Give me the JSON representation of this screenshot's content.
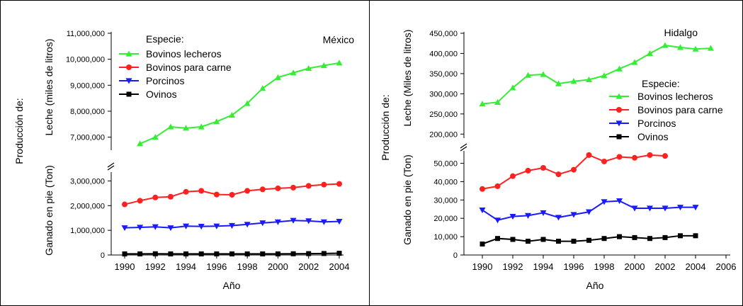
{
  "chart_data": [
    {
      "type": "line",
      "title": "México",
      "ylabel_outer": "Producción de:",
      "xlabel": "Año",
      "legend": {
        "title": "Especie:",
        "placement": "top-left"
      },
      "x": [
        1990,
        1991,
        1992,
        1993,
        1994,
        1995,
        1996,
        1997,
        1998,
        1999,
        2000,
        2001,
        2002,
        2003,
        2004
      ],
      "x_ticks": [
        "1990",
        "1992",
        "1994",
        "1996",
        "1998",
        "2000",
        "2002",
        "2004"
      ],
      "panels": [
        {
          "ylabel": "Leche (miles de litros)",
          "ylim": [
            6500000,
            11000000
          ],
          "y_ticks": [
            "7,000,000",
            "8,000,000",
            "9,000,000",
            "10,000,000",
            "11,000,000"
          ],
          "y_tick_values": [
            7000000,
            8000000,
            9000000,
            10000000,
            11000000
          ],
          "series": [
            {
              "name": "Bovinos lecheros",
              "color": "#33ee33",
              "marker": "triangle-up",
              "values": [
                null,
                6750000,
                7000000,
                7400000,
                7350000,
                7400000,
                7600000,
                7850000,
                8300000,
                8880000,
                9300000,
                9480000,
                9650000,
                9760000,
                9860000
              ]
            }
          ]
        },
        {
          "ylabel": "Ganado en pie (Ton)",
          "ylim": [
            0,
            3300000
          ],
          "y_ticks": [
            "0",
            "1,000,000",
            "2,000,000",
            "3,000,000"
          ],
          "y_tick_values": [
            0,
            1000000,
            2000000,
            3000000
          ],
          "series": [
            {
              "name": "Bovinos para carne",
              "color": "#ff2020",
              "marker": "circle",
              "values": [
                2050000,
                2200000,
                2330000,
                2360000,
                2560000,
                2600000,
                2450000,
                2440000,
                2600000,
                2660000,
                2700000,
                2730000,
                2800000,
                2850000,
                2880000
              ]
            },
            {
              "name": "Porcinos",
              "color": "#1a1aff",
              "marker": "triangle-down",
              "values": [
                1100000,
                1120000,
                1140000,
                1100000,
                1170000,
                1160000,
                1170000,
                1190000,
                1240000,
                1300000,
                1340000,
                1400000,
                1380000,
                1340000,
                1360000
              ]
            },
            {
              "name": "Ovinos",
              "color": "#000000",
              "marker": "square",
              "values": [
                45000,
                45000,
                50000,
                45000,
                45000,
                45000,
                45000,
                45000,
                45000,
                45000,
                45000,
                50000,
                55000,
                60000,
                70000
              ]
            }
          ]
        }
      ]
    },
    {
      "type": "line",
      "title": "Hidalgo",
      "ylabel_outer": "Producción de:",
      "xlabel": "Año",
      "legend": {
        "title": "Especie:",
        "placement": "right"
      },
      "x": [
        1990,
        1991,
        1992,
        1993,
        1994,
        1995,
        1996,
        1997,
        1998,
        1999,
        2000,
        2001,
        2002,
        2003,
        2004,
        2005
      ],
      "x_ticks": [
        "1990",
        "1992",
        "1994",
        "1996",
        "1998",
        "2000",
        "2002",
        "2004",
        "2006"
      ],
      "panels": [
        {
          "ylabel": "Leche (Miles de litros)",
          "ylim": [
            190000,
            450000
          ],
          "y_ticks": [
            "200,000",
            "250,000",
            "300,000",
            "350,000",
            "400,000",
            "450,000"
          ],
          "y_tick_values": [
            200000,
            250000,
            300000,
            350000,
            400000,
            450000
          ],
          "series": [
            {
              "name": "Bovinos lecheros",
              "color": "#33ee33",
              "marker": "triangle-up",
              "values": [
                275000,
                279000,
                315000,
                346000,
                348000,
                325000,
                331000,
                335000,
                345000,
                362000,
                378000,
                400000,
                420000,
                415000,
                411000,
                413000
              ]
            }
          ]
        },
        {
          "ylabel": "Ganado en pie (Ton)",
          "ylim": [
            0,
            56000
          ],
          "y_ticks": [
            "0",
            "10,000",
            "20,000",
            "30,000",
            "40,000",
            "50,000"
          ],
          "y_tick_values": [
            0,
            10000,
            20000,
            30000,
            40000,
            50000
          ],
          "series": [
            {
              "name": "Bovinos para carne",
              "color": "#ff2020",
              "marker": "circle",
              "values": [
                36000,
                37500,
                43000,
                46000,
                47500,
                44000,
                46500,
                54500,
                51000,
                53500,
                53000,
                54500,
                54000,
                null,
                null,
                null
              ]
            },
            {
              "name": "Porcinos",
              "color": "#1a1aff",
              "marker": "triangle-down",
              "values": [
                24500,
                19000,
                21000,
                21500,
                23000,
                20500,
                22000,
                23500,
                29000,
                29500,
                25500,
                25500,
                25500,
                26000,
                26000,
                null
              ]
            },
            {
              "name": "Ovinos",
              "color": "#000000",
              "marker": "square",
              "values": [
                6000,
                9000,
                8500,
                7500,
                8500,
                7500,
                7500,
                8000,
                9000,
                10000,
                9500,
                9000,
                9500,
                10500,
                10500,
                null
              ]
            }
          ]
        }
      ]
    }
  ]
}
